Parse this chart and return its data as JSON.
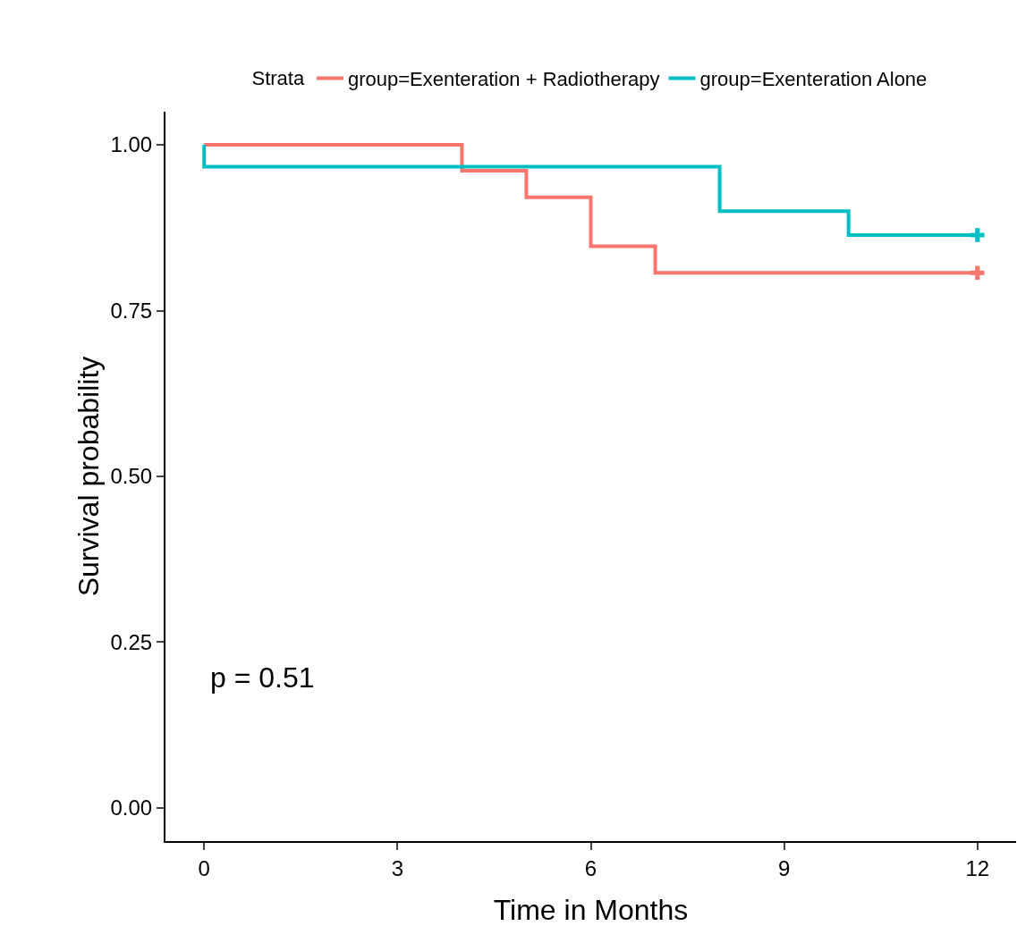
{
  "chart_data": {
    "type": "step",
    "xlabel": "Time in Months",
    "ylabel": "Survival probability",
    "legend_title": "Strata",
    "legend": "top",
    "grid": false,
    "line_style": "solid",
    "xlim": [
      -0.6,
      12.6
    ],
    "xticks": [
      0,
      3,
      6,
      9,
      12
    ],
    "ylim": [
      -0.05,
      1.05
    ],
    "yticks": [
      {
        "value": 0,
        "label": "0.00"
      },
      0.25,
      {
        "value": 0.5,
        "label": "0.50"
      },
      0.75,
      {
        "value": 1,
        "label": "1.00"
      }
    ],
    "series": [
      {
        "name": "group=Exenteration + Radiotherapy",
        "color": "#f8766d",
        "x": [
          0,
          4,
          5,
          6,
          7,
          12
        ],
        "values": [
          1.0,
          0.961,
          0.921,
          0.847,
          0.807,
          0.807
        ]
      },
      {
        "name": "group=Exenteration Alone",
        "color": "#00bfc4",
        "x": [
          0,
          0,
          8,
          10,
          12
        ],
        "values": [
          1.0,
          0.967,
          0.9,
          0.864,
          0.864
        ]
      },
      {
        "type": "scatter",
        "marker": "cross",
        "color": "#f8766d",
        "x": [
          12
        ],
        "values": [
          0.807
        ]
      },
      {
        "type": "scatter",
        "marker": "cross",
        "color": "#00bfc4",
        "x": [
          12
        ],
        "values": [
          0.864
        ]
      }
    ],
    "annotations": [
      "p = 0.51"
    ]
  }
}
